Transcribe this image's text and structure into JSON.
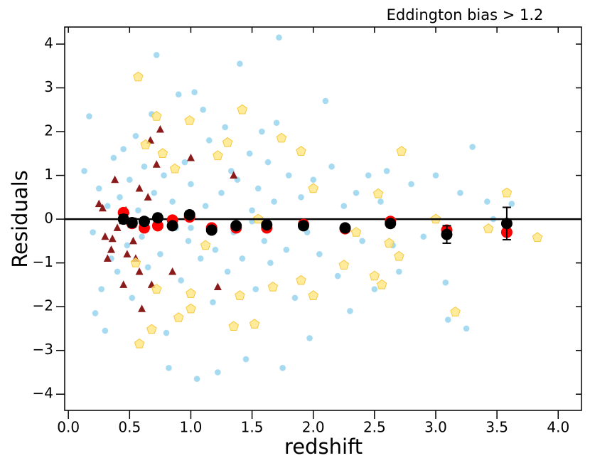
{
  "chart_data": {
    "type": "scatter",
    "title": "Eddington bias > 1.2",
    "xlabel": "redshift",
    "ylabel": "Residuals",
    "xlim": [
      -0.03,
      4.19
    ],
    "ylim": [
      -4.37,
      4.39
    ],
    "xticks": [
      {
        "value": 0,
        "label": "0.0"
      },
      0.5,
      {
        "value": 1,
        "label": "1.0"
      },
      1.5,
      {
        "value": 2,
        "label": "2.0"
      },
      2.5,
      {
        "value": 3,
        "label": "3.0"
      },
      3.5,
      {
        "value": 4,
        "label": "4.0"
      }
    ],
    "yticks": [
      {
        "value": -4,
        "label": "−4"
      },
      {
        "value": -3,
        "label": "−3"
      },
      {
        "value": -2,
        "label": "−2"
      },
      {
        "value": -1,
        "label": "−1"
      },
      0,
      1,
      2,
      3,
      4
    ],
    "hline": 0,
    "series": [
      {
        "marker": "circle",
        "color": "#87ceeb",
        "x": [
          0.13,
          0.17,
          0.2,
          0.22,
          0.25,
          0.27,
          0.3,
          0.32,
          0.35,
          0.37,
          0.4,
          0.42,
          0.45,
          0.48,
          0.5,
          0.52,
          0.55,
          0.57,
          0.6,
          0.62,
          0.65,
          0.68,
          0.7,
          0.72,
          0.75,
          0.78,
          0.8,
          0.82,
          0.85,
          0.88,
          0.9,
          0.92,
          0.95,
          0.98,
          1.0,
          1.03,
          1.05,
          1.08,
          1.1,
          1.12,
          1.15,
          1.18,
          1.2,
          1.22,
          1.25,
          1.28,
          1.3,
          1.33,
          1.35,
          1.38,
          1.4,
          1.42,
          1.45,
          1.48,
          1.5,
          1.53,
          1.55,
          1.58,
          1.6,
          1.63,
          1.65,
          1.68,
          1.7,
          1.72,
          1.75,
          1.78,
          1.8,
          1.85,
          1.9,
          1.95,
          1.97,
          2.0,
          2.05,
          2.1,
          2.15,
          2.2,
          2.25,
          2.3,
          2.35,
          2.4,
          2.45,
          2.5,
          2.55,
          2.6,
          2.65,
          2.7,
          2.8,
          2.9,
          3.0,
          3.1,
          3.08,
          3.2,
          3.25,
          3.3,
          3.42,
          3.47,
          3.62,
          0.6,
          1.0,
          1.5
        ],
        "y": [
          1.1,
          2.35,
          -0.3,
          -2.15,
          0.7,
          -1.6,
          -2.55,
          0.3,
          -0.9,
          1.4,
          -1.2,
          0.5,
          1.6,
          -0.6,
          0.9,
          -1.8,
          1.9,
          0.2,
          -0.4,
          1.2,
          -1.1,
          2.4,
          0.6,
          3.75,
          -0.8,
          1.0,
          -2.6,
          -3.4,
          0.4,
          -0.2,
          2.85,
          -1.4,
          1.3,
          -0.5,
          0.8,
          2.9,
          -3.65,
          -0.9,
          2.5,
          0.3,
          1.8,
          -1.9,
          -0.7,
          -3.5,
          0.6,
          2.1,
          -1.2,
          1.1,
          -0.3,
          0.9,
          3.55,
          -0.9,
          -3.2,
          1.5,
          0.2,
          -1.6,
          0.7,
          2.0,
          -0.5,
          1.3,
          -1.0,
          0.4,
          2.2,
          4.15,
          -3.4,
          -0.7,
          1.0,
          -1.8,
          0.5,
          -0.3,
          -2.72,
          0.9,
          -0.8,
          2.7,
          1.2,
          -1.3,
          0.3,
          -2.1,
          0.6,
          -0.5,
          1.0,
          -1.6,
          0.4,
          1.1,
          -0.6,
          -1.2,
          0.8,
          -0.4,
          1.0,
          -2.3,
          -1.45,
          0.6,
          -2.5,
          1.65,
          0.4,
          0.0,
          0.35,
          -0.1,
          -0.2,
          -0.05
        ]
      },
      {
        "marker": "triangle",
        "color": "#8b1a1a",
        "x": [
          0.67,
          0.75,
          0.38,
          0.25,
          0.28,
          0.58,
          0.72,
          1.0,
          1.35,
          0.65,
          0.3,
          0.36,
          0.35,
          0.32,
          0.45,
          0.48,
          0.55,
          0.58,
          0.68,
          0.85,
          1.22,
          0.6,
          0.47,
          0.4,
          0.53
        ],
        "y": [
          1.8,
          2.05,
          0.9,
          0.35,
          0.25,
          0.7,
          1.25,
          1.4,
          1.0,
          0.5,
          -0.4,
          -0.45,
          -0.7,
          -0.9,
          -1.5,
          -0.8,
          -0.9,
          -1.2,
          -1.5,
          -1.2,
          -1.55,
          -2.05,
          0.2,
          -0.2,
          -0.5
        ]
      },
      {
        "marker": "pentagon",
        "color": "#ffe680",
        "x": [
          0.57,
          1.42,
          0.72,
          0.99,
          1.74,
          2.72,
          1.9,
          0.63,
          1.3,
          0.77,
          0.87,
          1.22,
          2.0,
          2.53,
          3.58,
          3.0,
          3.43,
          3.83,
          3.16,
          2.56,
          2.5,
          2.7,
          2.62,
          2.25,
          2.0,
          1.52,
          1.35,
          1.67,
          1.4,
          0.58,
          0.68,
          0.9,
          1.0,
          0.72,
          1.0,
          0.55,
          1.12,
          1.9,
          2.35,
          1.55
        ],
        "y": [
          3.25,
          2.5,
          2.35,
          2.25,
          1.85,
          1.55,
          1.55,
          1.7,
          1.75,
          1.5,
          1.15,
          1.45,
          0.7,
          0.58,
          0.6,
          0.0,
          -0.22,
          -0.42,
          -2.12,
          -1.5,
          -1.3,
          -0.85,
          -0.55,
          -1.05,
          -1.75,
          -2.4,
          -2.45,
          -1.55,
          -1.75,
          -2.85,
          -2.52,
          -2.25,
          -2.05,
          -1.6,
          -1.7,
          -1.0,
          -0.6,
          -1.4,
          -0.3,
          0.0
        ]
      },
      {
        "marker": "bigcircle",
        "color": "#ff0000",
        "x": [
          0.45,
          0.52,
          0.62,
          0.73,
          0.85,
          0.99,
          1.17,
          1.37,
          1.62,
          1.92,
          2.26,
          2.63,
          3.09,
          3.58
        ],
        "y": [
          0.15,
          -0.1,
          -0.2,
          -0.15,
          -0.02,
          0.05,
          -0.2,
          -0.2,
          -0.2,
          -0.12,
          -0.22,
          -0.05,
          -0.25,
          -0.3
        ]
      },
      {
        "marker": "bigcircle",
        "color": "#000000",
        "x": [
          0.45,
          0.52,
          0.62,
          0.73,
          0.85,
          0.99,
          1.17,
          1.37,
          1.62,
          1.92,
          2.26,
          2.63,
          3.09,
          3.58
        ],
        "y": [
          0.0,
          -0.08,
          -0.05,
          0.03,
          -0.15,
          0.1,
          -0.25,
          -0.15,
          -0.13,
          -0.15,
          -0.2,
          -0.1,
          -0.35,
          -0.1
        ],
        "errors": [
          0.1,
          0.1,
          0.08,
          0.08,
          0.07,
          0.08,
          0.07,
          0.07,
          0.06,
          0.07,
          0.07,
          0.08,
          0.2,
          0.37
        ]
      }
    ]
  }
}
